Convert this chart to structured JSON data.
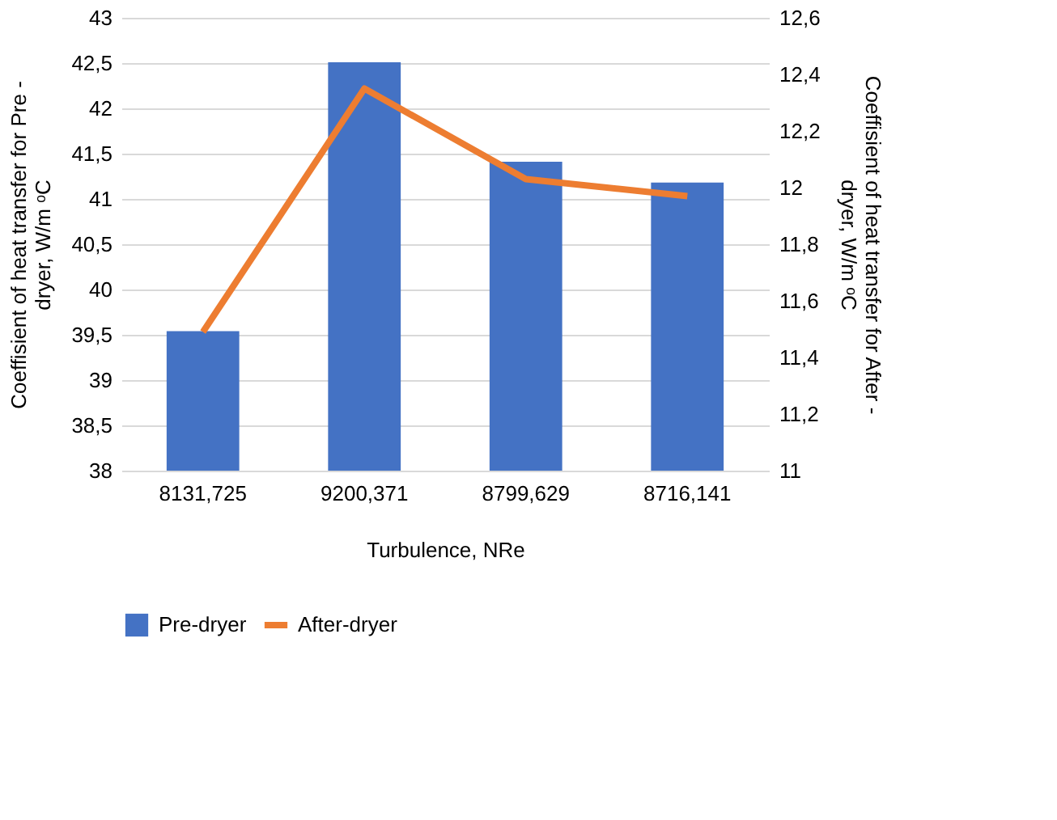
{
  "chart_data": {
    "type": "bar",
    "categories": [
      "8131,725",
      "9200,371",
      "8799,629",
      "8716,141"
    ],
    "xlabel": "Turbulence, NRe",
    "ylabel": "Coeffisient of heat transfer for Pre - dryer, W/m ᵒC",
    "y2label": "Coeffisient of heat transfer for After - dryer, W/m ᵒC",
    "series": [
      {
        "name": "Pre-dryer",
        "color": "#4472c4",
        "values": [
          39.54,
          42.51,
          41.41,
          41.18
        ]
      },
      {
        "name": "After-dryer",
        "type": "line",
        "axis": "y2",
        "color": "#ed7d31",
        "values": [
          11.49,
          12.35,
          12.03,
          11.97
        ]
      }
    ],
    "ylim": [
      38,
      43
    ],
    "yticks": [
      38,
      {
        "value": 38.5,
        "label": "38,5"
      },
      39,
      {
        "value": 39.5,
        "label": "39,5"
      },
      40,
      {
        "value": 40.5,
        "label": "40,5"
      },
      41,
      {
        "value": 41.5,
        "label": "41,5"
      },
      42,
      {
        "value": 42.5,
        "label": "42,5"
      },
      43
    ],
    "y2lim": [
      11,
      12.6
    ],
    "y2ticks": [
      11,
      {
        "value": 11.2,
        "label": "11,2"
      },
      {
        "value": 11.4,
        "label": "11,4"
      },
      {
        "value": 11.6,
        "label": "11,6"
      },
      {
        "value": 11.8,
        "label": "11,8"
      },
      12,
      {
        "value": 12.2,
        "label": "12,2"
      },
      {
        "value": 12.4,
        "label": "12,4"
      },
      {
        "value": 12.6,
        "label": "12,6"
      }
    ],
    "grid": "y",
    "legend": "bottom",
    "line_style": "solid",
    "marker": "none"
  }
}
